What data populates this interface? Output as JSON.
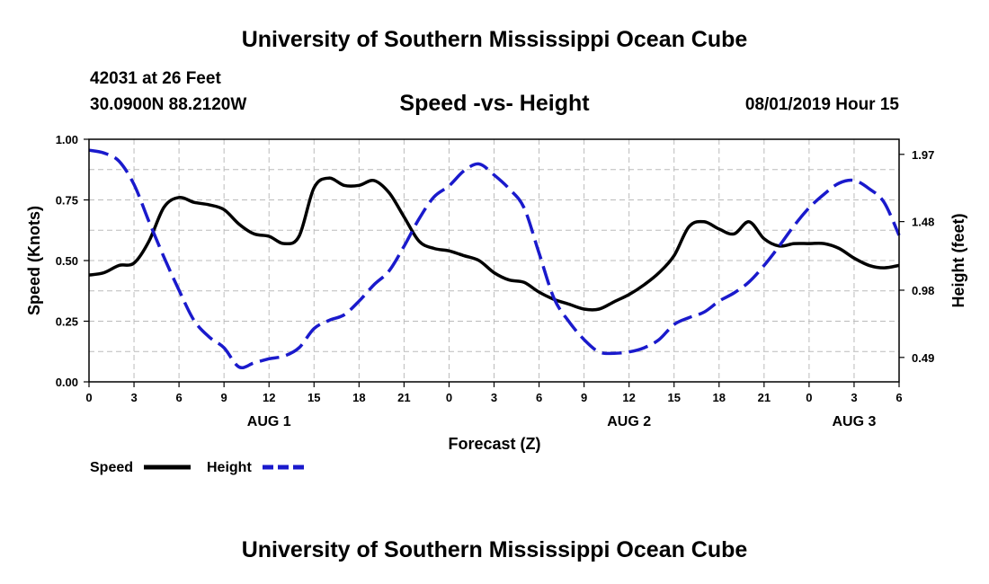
{
  "header": {
    "title": "University of Southern Mississippi Ocean Cube",
    "station": "42031 at 26 Feet",
    "coordinates": "30.0900N 88.2120W",
    "subtitle": "Speed -vs- Height",
    "datetime": "08/01/2019 Hour 15"
  },
  "footer": {
    "title": "University of Southern Mississippi Ocean Cube"
  },
  "legend": {
    "speed_label": "Speed",
    "height_label": "Height"
  },
  "colors": {
    "speed": "#000000",
    "height": "#1a1acc",
    "grid": "#bbbbbb"
  },
  "chart_data": {
    "type": "line",
    "title": "Speed -vs- Height",
    "xlabel": "Forecast (Z)",
    "ylabel": "Speed (Knots)",
    "y2label": "Height (feet)",
    "xlim": [
      0,
      54
    ],
    "ylim": [
      0,
      1
    ],
    "y2lim": [
      0.312,
      2.08
    ],
    "x_ticks": [
      0,
      3,
      6,
      9,
      12,
      15,
      18,
      21,
      24,
      27,
      30,
      33,
      36,
      39,
      42,
      45,
      48,
      51,
      54
    ],
    "x_tick_labels": [
      "0",
      "3",
      "6",
      "9",
      "12",
      "15",
      "18",
      "21",
      "0",
      "3",
      "6",
      "9",
      "12",
      "15",
      "18",
      "21",
      "0",
      "3",
      "6"
    ],
    "y_ticks": [
      0,
      0.25,
      0.5,
      0.75,
      1
    ],
    "y_tick_labels": [
      "0.00",
      "0.25",
      "0.50",
      "0.75",
      "1.00"
    ],
    "y2_ticks": [
      0.49,
      0.98,
      1.48,
      1.97
    ],
    "y2_tick_labels": [
      "0.49",
      "0.98",
      "1.48",
      "1.97"
    ],
    "day_labels": [
      {
        "x": 12,
        "label": "AUG 1"
      },
      {
        "x": 36,
        "label": "AUG 2"
      },
      {
        "x": 51,
        "label": "AUG 3"
      }
    ],
    "series": [
      {
        "name": "Speed",
        "axis": "left",
        "style": "solid",
        "x": [
          0,
          1,
          2,
          3,
          4,
          5,
          6,
          7,
          8,
          9,
          10,
          11,
          12,
          13,
          14,
          15,
          16,
          17,
          18,
          19,
          20,
          21,
          22,
          23,
          24,
          25,
          26,
          27,
          28,
          29,
          30,
          31,
          32,
          33,
          34,
          35,
          36,
          37,
          38,
          39,
          40,
          41,
          42,
          43,
          44,
          45,
          46,
          47,
          48,
          49,
          50,
          51,
          52,
          53,
          54
        ],
        "values": [
          0.44,
          0.45,
          0.48,
          0.49,
          0.58,
          0.72,
          0.76,
          0.74,
          0.73,
          0.71,
          0.65,
          0.61,
          0.6,
          0.57,
          0.6,
          0.8,
          0.84,
          0.81,
          0.81,
          0.83,
          0.78,
          0.68,
          0.58,
          0.55,
          0.54,
          0.52,
          0.5,
          0.45,
          0.42,
          0.41,
          0.37,
          0.34,
          0.32,
          0.3,
          0.3,
          0.33,
          0.36,
          0.4,
          0.45,
          0.52,
          0.64,
          0.66,
          0.63,
          0.61,
          0.66,
          0.59,
          0.56,
          0.57,
          0.57,
          0.57,
          0.55,
          0.51,
          0.48,
          0.47,
          0.48
        ]
      },
      {
        "name": "Height",
        "axis": "right",
        "style": "dashed",
        "x": [
          0,
          1,
          2,
          3,
          4,
          5,
          6,
          7,
          8,
          9,
          10,
          11,
          12,
          13,
          14,
          15,
          16,
          17,
          18,
          19,
          20,
          21,
          22,
          23,
          24,
          25,
          26,
          27,
          28,
          29,
          30,
          31,
          32,
          33,
          34,
          35,
          36,
          37,
          38,
          39,
          40,
          41,
          42,
          43,
          44,
          45,
          46,
          47,
          48,
          49,
          50,
          51,
          52,
          53,
          54
        ],
        "values": [
          2.0,
          1.98,
          1.92,
          1.75,
          1.48,
          1.22,
          0.98,
          0.76,
          0.64,
          0.56,
          0.42,
          0.45,
          0.48,
          0.5,
          0.56,
          0.7,
          0.76,
          0.8,
          0.9,
          1.02,
          1.12,
          1.3,
          1.5,
          1.66,
          1.74,
          1.85,
          1.9,
          1.82,
          1.72,
          1.58,
          1.25,
          0.92,
          0.75,
          0.62,
          0.53,
          0.52,
          0.53,
          0.56,
          0.62,
          0.73,
          0.78,
          0.82,
          0.9,
          0.96,
          1.04,
          1.16,
          1.3,
          1.45,
          1.58,
          1.68,
          1.76,
          1.78,
          1.72,
          1.62,
          1.38
        ]
      }
    ]
  }
}
